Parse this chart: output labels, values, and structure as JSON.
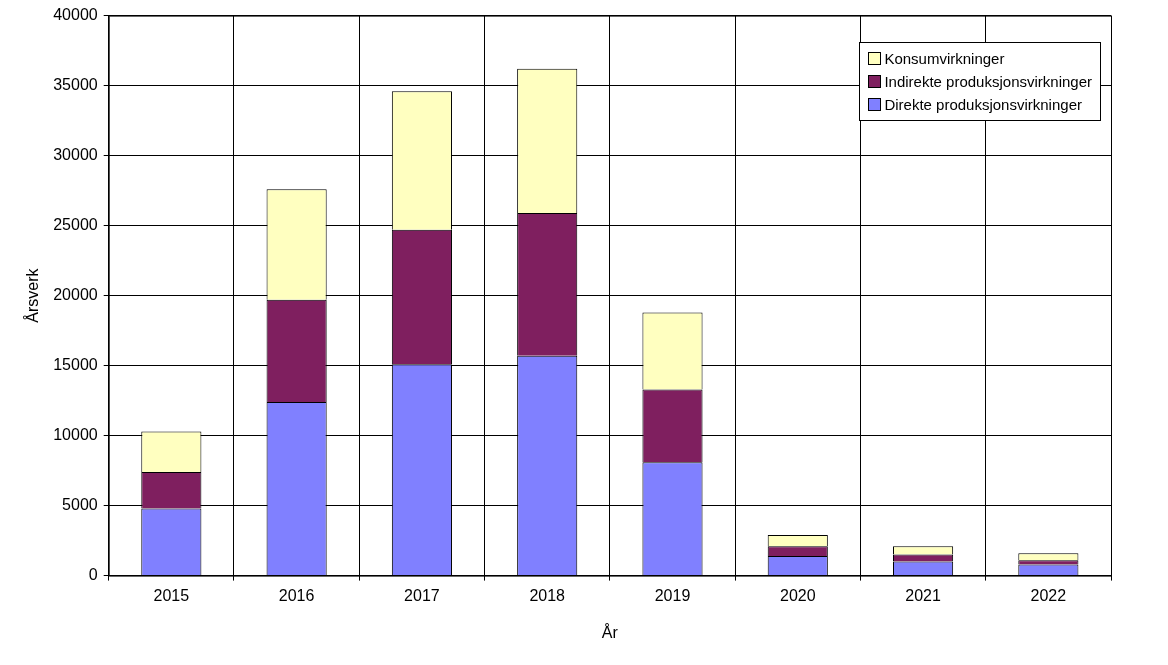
{
  "chart_data": {
    "type": "bar",
    "stacked": true,
    "xlabel": "År",
    "ylabel": "Årsverk",
    "categories": [
      "2015",
      "2016",
      "2017",
      "2018",
      "2019",
      "2020",
      "2021",
      "2022"
    ],
    "series": [
      {
        "name": "Direkte produksjonsvirkninger",
        "color": "#8080ff",
        "values": [
          4800,
          12400,
          15100,
          15700,
          8100,
          1400,
          1000,
          800
        ]
      },
      {
        "name": "Indirekte produksjonsvirkninger",
        "color": "#7f1f5f",
        "values": [
          2600,
          7300,
          9600,
          10200,
          5200,
          700,
          500,
          300
        ]
      },
      {
        "name": "Konsumvirkninger",
        "color": "#ffffc0",
        "values": [
          2900,
          7900,
          9900,
          10300,
          5500,
          800,
          600,
          500
        ]
      }
    ],
    "ylim": [
      0,
      40000
    ],
    "yticks": [
      0,
      5000,
      10000,
      15000,
      20000,
      25000,
      30000,
      35000,
      40000
    ],
    "grid": true,
    "legend": "top right"
  }
}
